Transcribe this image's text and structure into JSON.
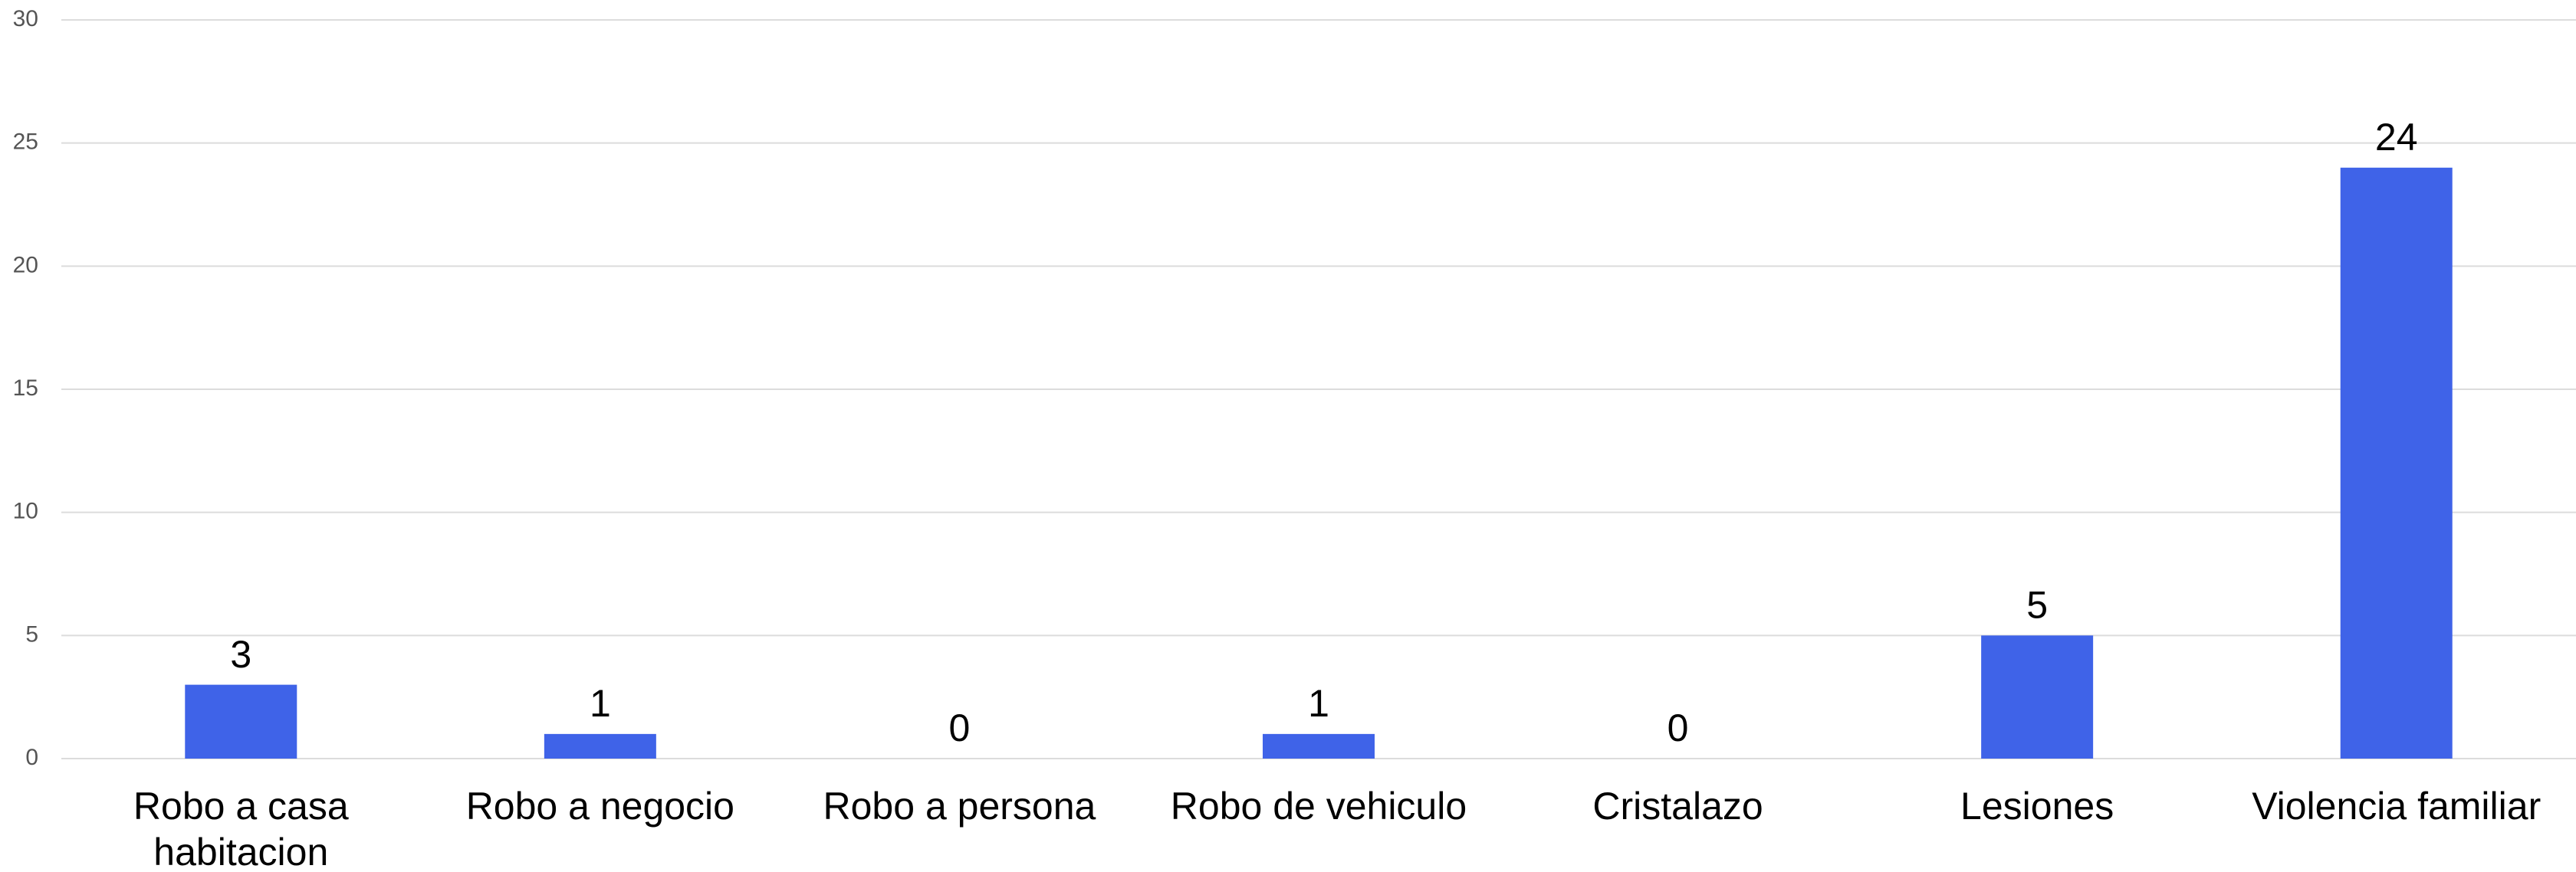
{
  "chart_data": {
    "type": "bar",
    "categories": [
      "Robo a casa habitacion",
      "Robo a negocio",
      "Robo a persona",
      "Robo de vehiculo",
      "Cristalazo",
      "Lesiones",
      "Violencia familiar"
    ],
    "values": [
      3,
      1,
      0,
      1,
      0,
      5,
      24
    ],
    "color": "#3f63e8",
    "ylim": [
      0,
      30
    ],
    "yticks": [
      0,
      5,
      10,
      15,
      20,
      25,
      30
    ],
    "grid": true
  }
}
